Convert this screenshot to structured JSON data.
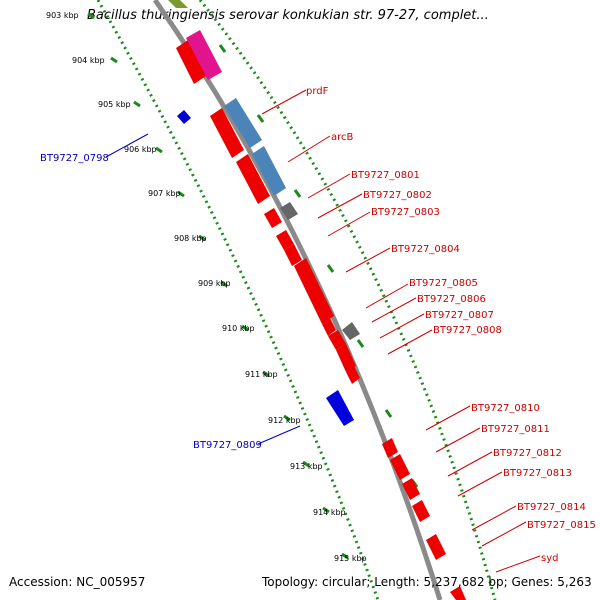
{
  "title": "Bacillus thuringiensis serovar konkukian str. 97-27, complet...",
  "accession": "Accession: NC_005957",
  "summary": "Topology: circular; Length: 5,237,682 bp; Genes: 5,263",
  "colors": {
    "backbone": "#8a8a8a",
    "dotted": "#1a8a1a",
    "red": "#ee0000",
    "blue": "#0000dd",
    "steel": "#4a84b8",
    "gray": "#666666",
    "magenta": "#e0148c",
    "olive": "#7a9a30",
    "label_red": "#cc0000",
    "label_blue": "#0000bb"
  },
  "ticks": [
    "903 kbp",
    "904 kbp",
    "905 kbp",
    "906 kbp",
    "907 kbp",
    "908 kbp",
    "909 kbp",
    "910 kbp",
    "911 kbp",
    "912 kbp",
    "913 kbp",
    "914 kbp",
    "915 kbp"
  ],
  "labels_right": [
    "prdF",
    "arcB",
    "BT9727_0801",
    "BT9727_0802",
    "BT9727_0803",
    "BT9727_0804",
    "BT9727_0805",
    "BT9727_0806",
    "BT9727_0807",
    "BT9727_0808",
    "BT9727_0810",
    "BT9727_0811",
    "BT9727_0812",
    "BT9727_0813",
    "BT9727_0814",
    "BT9727_0815",
    "syd"
  ],
  "labels_left": [
    "BT9727_0798",
    "BT9727_0809"
  ]
}
